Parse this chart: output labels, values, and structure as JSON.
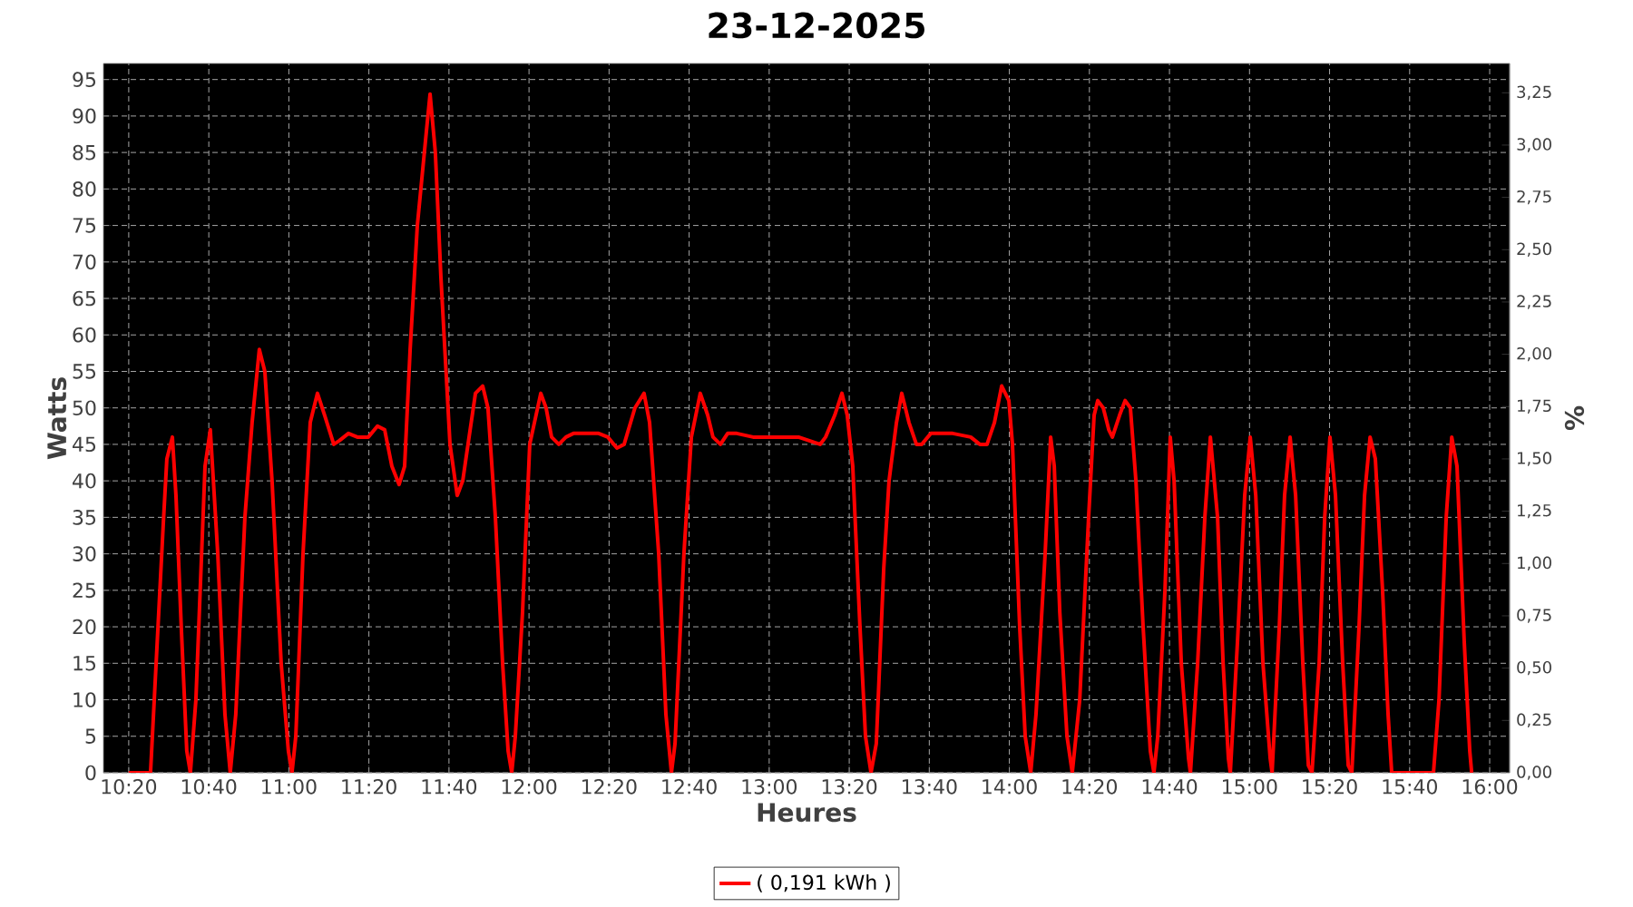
{
  "chart_data": {
    "type": "line",
    "title": "23-12-2025",
    "xlabel": "Heures",
    "ylabel": "Watts",
    "y2label": "%",
    "x": [
      10.333,
      10.424,
      10.477,
      10.492,
      10.515,
      10.53,
      10.552,
      10.575,
      10.59,
      10.613,
      10.651,
      10.673,
      10.704,
      10.734,
      10.756,
      10.779,
      10.817,
      10.847,
      10.877,
      10.9,
      10.93,
      10.968,
      10.998,
      11.013,
      11.029,
      11.059,
      11.089,
      11.119,
      11.149,
      11.187,
      11.21,
      11.248,
      11.285,
      11.331,
      11.369,
      11.399,
      11.429,
      11.459,
      11.482,
      11.505,
      11.535,
      11.573,
      11.588,
      11.61,
      11.633,
      11.671,
      11.701,
      11.724,
      11.746,
      11.777,
      11.807,
      11.829,
      11.86,
      11.89,
      11.913,
      11.928,
      11.943,
      11.973,
      12.003,
      12.049,
      12.071,
      12.094,
      12.124,
      12.154,
      12.185,
      12.29,
      12.328,
      12.366,
      12.396,
      12.441,
      12.479,
      12.502,
      12.54,
      12.57,
      12.593,
      12.608,
      12.645,
      12.676,
      12.713,
      12.744,
      12.766,
      12.797,
      12.827,
      12.865,
      12.933,
      13.008,
      13.122,
      13.212,
      13.235,
      13.273,
      13.303,
      13.325,
      13.348,
      13.378,
      13.401,
      13.424,
      13.446,
      13.477,
      13.499,
      13.53,
      13.552,
      13.582,
      13.613,
      13.635,
      13.673,
      13.764,
      13.839,
      13.877,
      13.907,
      13.938,
      13.968,
      13.998,
      14.013,
      14.043,
      14.066,
      14.089,
      14.111,
      14.149,
      14.172,
      14.187,
      14.21,
      14.24,
      14.262,
      14.293,
      14.33,
      14.353,
      14.368,
      14.391,
      14.414,
      14.429,
      14.459,
      14.482,
      14.504,
      14.527,
      14.557,
      14.587,
      14.602,
      14.618,
      14.648,
      14.67,
      14.686,
      14.716,
      14.746,
      14.754,
      14.784,
      14.814,
      14.837,
      14.867,
      14.89,
      14.912,
      14.92,
      14.95,
      14.98,
      15.003,
      15.026,
      15.056,
      15.086,
      15.094,
      15.124,
      15.146,
      15.169,
      15.192,
      15.222,
      15.245,
      15.26,
      15.29,
      15.313,
      15.335,
      15.358,
      15.388,
      15.411,
      15.426,
      15.456,
      15.479,
      15.502,
      15.524,
      15.554,
      15.577,
      15.592,
      15.766,
      15.789,
      15.819,
      15.842,
      15.864,
      15.894,
      15.917,
      15.925
    ],
    "series": [
      {
        "name": "( 0,191 kWh )",
        "color": "#ff0000",
        "values": [
          0,
          0,
          34,
          43,
          46,
          38,
          20,
          3,
          0,
          10,
          42,
          47,
          30,
          8,
          0,
          8,
          35,
          48,
          58,
          55,
          40,
          15,
          3,
          0,
          5,
          30,
          48,
          52,
          49,
          45,
          45.5,
          46.5,
          46,
          46,
          47.5,
          47,
          42,
          39.5,
          42,
          58,
          75,
          88,
          93,
          85,
          68,
          45,
          38,
          40,
          45,
          52,
          53,
          50,
          35,
          15,
          3,
          0,
          5,
          22,
          45,
          52,
          50,
          46,
          45,
          46,
          46.5,
          46.5,
          46,
          44.5,
          45,
          50,
          52,
          48,
          30,
          8,
          0,
          4,
          30,
          46,
          52,
          49,
          46,
          45,
          46.5,
          46.5,
          46,
          46,
          46,
          45,
          46,
          49,
          52,
          49,
          42,
          20,
          5,
          0,
          4,
          28,
          40,
          48,
          52,
          48,
          45,
          45,
          46.5,
          46.5,
          46,
          45,
          45,
          48,
          53,
          51,
          45,
          20,
          5,
          0,
          8,
          30,
          46,
          42,
          22,
          5,
          0,
          10,
          35,
          49,
          51,
          50,
          47,
          46,
          49,
          51,
          50,
          40,
          20,
          3,
          0,
          5,
          25,
          46,
          40,
          15,
          2,
          0,
          15,
          35,
          46,
          35,
          15,
          2,
          0,
          18,
          38,
          46,
          38,
          15,
          2,
          0,
          20,
          38,
          46,
          38,
          15,
          1,
          0,
          15,
          35,
          46,
          38,
          15,
          1,
          0,
          20,
          38,
          46,
          43,
          25,
          8,
          0,
          0,
          10,
          35,
          46,
          42,
          18,
          3,
          0
        ]
      }
    ],
    "xlim": [
      10.228,
      16.083
    ],
    "ylim": [
      0,
      97.2
    ],
    "y2lim": [
      0,
      3.39
    ],
    "xticks": [
      {
        "value": 10.3333,
        "label": "10:20"
      },
      {
        "value": 10.6667,
        "label": "10:40"
      },
      {
        "value": 11,
        "label": "11:00"
      },
      {
        "value": 11.3333,
        "label": "11:20"
      },
      {
        "value": 11.6667,
        "label": "11:40"
      },
      {
        "value": 12,
        "label": "12:00"
      },
      {
        "value": 12.3333,
        "label": "12:20"
      },
      {
        "value": 12.6667,
        "label": "12:40"
      },
      {
        "value": 13,
        "label": "13:00"
      },
      {
        "value": 13.3333,
        "label": "13:20"
      },
      {
        "value": 13.6667,
        "label": "13:40"
      },
      {
        "value": 14,
        "label": "14:00"
      },
      {
        "value": 14.3333,
        "label": "14:20"
      },
      {
        "value": 14.6667,
        "label": "14:40"
      },
      {
        "value": 15,
        "label": "15:00"
      },
      {
        "value": 15.3333,
        "label": "15:20"
      },
      {
        "value": 15.6667,
        "label": "15:40"
      },
      {
        "value": 16,
        "label": "16:00"
      }
    ],
    "yticks": [
      0,
      5,
      10,
      15,
      20,
      25,
      30,
      35,
      40,
      45,
      50,
      55,
      60,
      65,
      70,
      75,
      80,
      85,
      90,
      95
    ],
    "y2ticks": [
      {
        "value": 0,
        "label": "0,00"
      },
      {
        "value": 0.25,
        "label": "0,25"
      },
      {
        "value": 0.5,
        "label": "0,50"
      },
      {
        "value": 0.75,
        "label": "0,75"
      },
      {
        "value": 1,
        "label": "1,00"
      },
      {
        "value": 1.25,
        "label": "1,25"
      },
      {
        "value": 1.5,
        "label": "1,50"
      },
      {
        "value": 1.75,
        "label": "1,75"
      },
      {
        "value": 2,
        "label": "2,00"
      },
      {
        "value": 2.25,
        "label": "2,25"
      },
      {
        "value": 2.5,
        "label": "2,50"
      },
      {
        "value": 2.75,
        "label": "2,75"
      },
      {
        "value": 3,
        "label": "3,00"
      },
      {
        "value": 3.25,
        "label": "3,25"
      }
    ],
    "grid": true,
    "legend": "bottom",
    "marker": "none",
    "line_style": "solid"
  }
}
